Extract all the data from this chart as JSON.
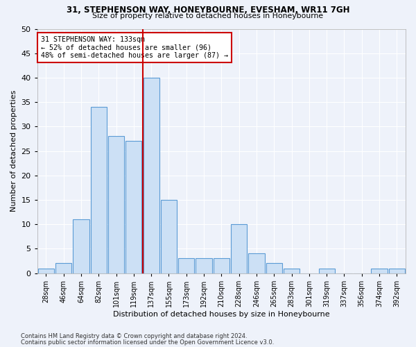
{
  "title1": "31, STEPHENSON WAY, HONEYBOURNE, EVESHAM, WR11 7GH",
  "title2": "Size of property relative to detached houses in Honeybourne",
  "xlabel": "Distribution of detached houses by size in Honeybourne",
  "ylabel": "Number of detached properties",
  "bin_labels": [
    "28sqm",
    "46sqm",
    "64sqm",
    "82sqm",
    "101sqm",
    "119sqm",
    "137sqm",
    "155sqm",
    "173sqm",
    "192sqm",
    "210sqm",
    "228sqm",
    "246sqm",
    "265sqm",
    "283sqm",
    "301sqm",
    "319sqm",
    "337sqm",
    "356sqm",
    "374sqm",
    "392sqm"
  ],
  "bar_heights": [
    1,
    2,
    11,
    34,
    28,
    27,
    40,
    15,
    3,
    3,
    3,
    10,
    4,
    2,
    1,
    0,
    1,
    0,
    0,
    1,
    1
  ],
  "bar_color": "#cce0f5",
  "bar_edge_color": "#5b9bd5",
  "vline_x": 5.5,
  "vline_color": "#cc0000",
  "annotation_text": "31 STEPHENSON WAY: 133sqm\n← 52% of detached houses are smaller (96)\n48% of semi-detached houses are larger (87) →",
  "annotation_box_color": "#cc0000",
  "ylim": [
    0,
    50
  ],
  "yticks": [
    0,
    5,
    10,
    15,
    20,
    25,
    30,
    35,
    40,
    45,
    50
  ],
  "background_color": "#eef2fa",
  "grid_color": "#ffffff",
  "footnote1": "Contains HM Land Registry data © Crown copyright and database right 2024.",
  "footnote2": "Contains public sector information licensed under the Open Government Licence v3.0."
}
